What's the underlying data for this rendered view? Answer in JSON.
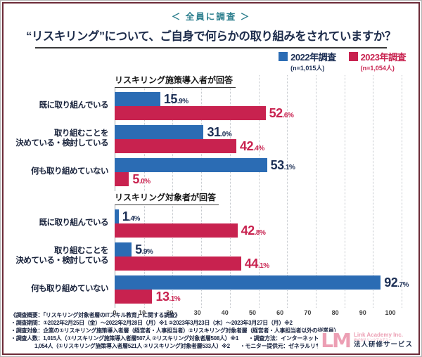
{
  "badge": {
    "label": "＜ 全員に調査 ＞",
    "color": "#2a7d8c"
  },
  "title": "“リスキリング”について、ご自身で何らかの取り組みをされていますか？",
  "legend": [
    {
      "label": "2022年調査",
      "sub": "(n=1,015人)",
      "color": "#2b6cb4",
      "text_color": "#1c2f55"
    },
    {
      "label": "2023年調査",
      "sub": "(n=1,054人)",
      "color": "#c8224f",
      "text_color": "#c8224f"
    }
  ],
  "chart_data": {
    "type": "bar",
    "orientation": "horizontal",
    "xlim": [
      0,
      100
    ],
    "x_ticks": [
      0,
      10,
      20,
      30,
      40,
      50,
      60,
      70,
      80,
      90,
      100
    ],
    "unit": "%",
    "grid": "dotted-vertical",
    "sections": [
      {
        "header": "リスキリング施策導入者が回答",
        "categories": [
          "既に取り組んでいる",
          "取り組むことを\n決めている・検討している",
          "何も取り組めていない"
        ],
        "series": [
          {
            "name": "2022年調査",
            "color": "#2b6cb4",
            "value_label_color": "#1c2f55",
            "values": [
              15.9,
              31.0,
              53.1
            ]
          },
          {
            "name": "2023年調査",
            "color": "#c8224f",
            "value_label_color": "#c8224f",
            "values": [
              52.6,
              42.4,
              5.0
            ]
          }
        ]
      },
      {
        "header": "リスキリング対象者が回答",
        "categories": [
          "既に取り組んでいる",
          "取り組むことを\n決めている・検討している",
          "何も取り組めていない"
        ],
        "series": [
          {
            "name": "2022年調査",
            "color": "#2b6cb4",
            "value_label_color": "#1c2f55",
            "values": [
              1.4,
              5.9,
              92.7
            ]
          },
          {
            "name": "2023年調査",
            "color": "#c8224f",
            "value_label_color": "#c8224f",
            "values": [
              42.8,
              44.1,
              13.1
            ]
          }
        ]
      }
    ]
  },
  "footer": {
    "line1": "《調査概要：「リスキリング対象者層のITスキル教育」に関する調査》",
    "line2": "・調査期間：①2022年2月25日（金）～2022年2月28日（月）※1 ②2023年3月23日（木）～2023年3月27日（月）※2",
    "line3": "・調査対象：企業の①リスキリング施策導入者層（経営者・人事担当者）②リスキリング対象者層（経営者・人事担当者以外の従業員）",
    "line4_left": "・調査人数：1,015人（①リスキリング施策導入者層507人 ②リスキリング対象者層508人）※1",
    "line4_right": "・調査方法：インターネット調査",
    "line5_left": "1,054人（①リスキリング施策導入者層521人 ②リスキリング対象者層533人）※2",
    "line5_right": "・モニター提供元：ゼネラルリサーチ"
  },
  "logo": {
    "lm": "LM",
    "company": "Link Academy Inc.",
    "company_jp": "株式会社リンクアカデミー",
    "service": "法人研修サービス"
  }
}
